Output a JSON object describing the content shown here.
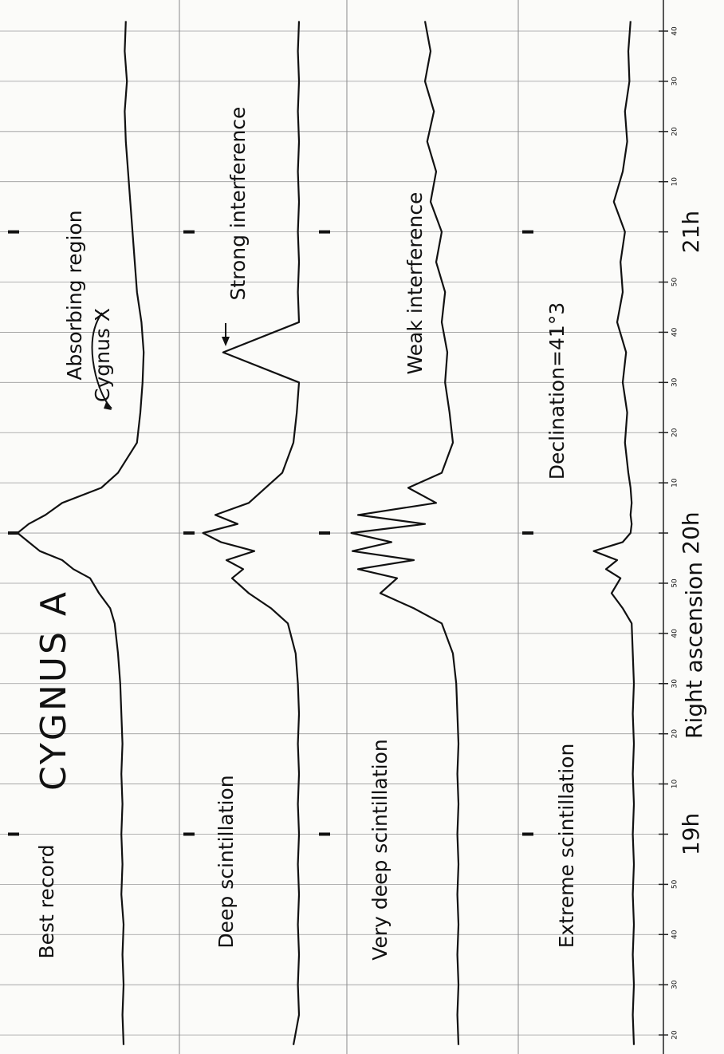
{
  "chart_data": [
    {
      "type": "line",
      "title": "CYGNUS A",
      "label": "Best record",
      "annotations": [
        "Absorbing region",
        "Cygnus X"
      ],
      "xlabel": "Right ascension",
      "xlim": [
        18.27,
        21.77
      ],
      "xticks": [
        {
          "value": 18.3333,
          "label": "20"
        },
        {
          "value": 18.5,
          "label": "30"
        },
        {
          "value": 18.6667,
          "label": "40"
        },
        {
          "value": 18.8333,
          "label": "50"
        },
        {
          "value": 19,
          "label": "19h"
        },
        {
          "value": 19.1667,
          "label": "10"
        },
        {
          "value": 19.3333,
          "label": "20"
        },
        {
          "value": 19.5,
          "label": "30"
        },
        {
          "value": 19.6667,
          "label": "40"
        },
        {
          "value": 19.8333,
          "label": "50"
        },
        {
          "value": 20,
          "label": "20h"
        },
        {
          "value": 20.1667,
          "label": "10"
        },
        {
          "value": 20.3333,
          "label": "20"
        },
        {
          "value": 20.5,
          "label": "30"
        },
        {
          "value": 20.6667,
          "label": "40"
        },
        {
          "value": 20.8333,
          "label": "50"
        },
        {
          "value": 21,
          "label": "21h"
        },
        {
          "value": 21.1667,
          "label": "10"
        },
        {
          "value": 21.3333,
          "label": "20"
        },
        {
          "value": 21.5,
          "label": "30"
        },
        {
          "value": 21.6667,
          "label": "40"
        }
      ],
      "ylim": [
        -20,
        100
      ],
      "x": [
        18.3,
        18.4,
        18.5,
        18.6,
        18.7,
        18.8,
        18.9,
        19.0,
        19.1,
        19.2,
        19.3,
        19.4,
        19.5,
        19.6,
        19.7,
        19.75,
        19.8,
        19.85,
        19.88,
        19.91,
        19.94,
        19.97,
        20.0,
        20.03,
        20.06,
        20.1,
        20.15,
        20.2,
        20.3,
        20.4,
        20.5,
        20.6,
        20.7,
        20.8,
        20.9,
        21.0,
        21.1,
        21.2,
        21.3,
        21.4,
        21.5,
        21.6,
        21.7
      ],
      "values": [
        0,
        1,
        0,
        1,
        0,
        2,
        1,
        2,
        1,
        2,
        1,
        2,
        3,
        5,
        8,
        12,
        22,
        30,
        45,
        55,
        75,
        85,
        95,
        85,
        70,
        55,
        20,
        5,
        -12,
        -15,
        -17,
        -18,
        -16,
        -12,
        -10,
        -8,
        -6,
        -4,
        -2,
        -1,
        -3,
        -1,
        -2
      ],
      "color": "#111111"
    },
    {
      "type": "line",
      "label": "Deep scintillation",
      "annotations": [
        "Strong interference"
      ],
      "ylim": [
        -20,
        100
      ],
      "values": [
        5,
        0,
        1,
        0,
        1,
        0,
        1,
        0,
        1,
        0,
        1,
        0,
        1,
        3,
        10,
        25,
        45,
        60,
        50,
        65,
        40,
        70,
        86,
        55,
        75,
        45,
        30,
        15,
        5,
        2,
        0,
        68,
        0,
        1,
        0,
        1,
        0,
        1,
        0,
        1,
        0,
        1,
        0
      ],
      "color": "#111111"
    },
    {
      "type": "line",
      "label": "Very deep scintillation",
      "annotations": [
        "Weak interference"
      ],
      "ylim": [
        -20,
        100
      ],
      "values": [
        0,
        1,
        0,
        1,
        0,
        1,
        0,
        1,
        0,
        1,
        0,
        1,
        2,
        5,
        15,
        40,
        70,
        55,
        90,
        40,
        95,
        60,
        96,
        30,
        90,
        20,
        45,
        15,
        5,
        8,
        12,
        10,
        15,
        12,
        20,
        15,
        25,
        20,
        28,
        22,
        30,
        25,
        30
      ],
      "color": "#111111"
    },
    {
      "type": "line",
      "label": "Extreme scintillation",
      "annotations": [
        "Declination=41°3"
      ],
      "ylim": [
        -20,
        100
      ],
      "values": [
        0,
        1,
        0,
        1,
        0,
        1,
        0,
        1,
        0,
        1,
        0,
        1,
        0,
        1,
        2,
        10,
        20,
        12,
        25,
        15,
        36,
        10,
        3,
        2,
        3,
        2,
        3,
        5,
        8,
        6,
        10,
        7,
        15,
        10,
        12,
        8,
        18,
        10,
        6,
        8,
        4,
        5,
        3
      ],
      "color": "#111111"
    }
  ]
}
